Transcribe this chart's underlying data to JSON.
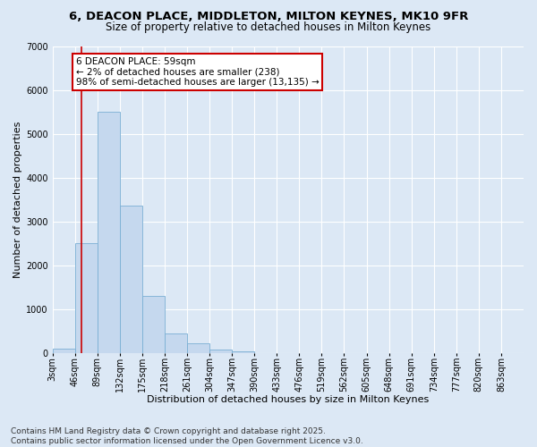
{
  "title_line1": "6, DEACON PLACE, MIDDLETON, MILTON KEYNES, MK10 9FR",
  "title_line2": "Size of property relative to detached houses in Milton Keynes",
  "xlabel": "Distribution of detached houses by size in Milton Keynes",
  "ylabel": "Number of detached properties",
  "annotation_title": "6 DEACON PLACE: 59sqm",
  "annotation_line2": "← 2% of detached houses are smaller (238)",
  "annotation_line3": "98% of semi-detached houses are larger (13,135) →",
  "footer_line1": "Contains HM Land Registry data © Crown copyright and database right 2025.",
  "footer_line2": "Contains public sector information licensed under the Open Government Licence v3.0.",
  "bin_labels": [
    "3sqm",
    "46sqm",
    "89sqm",
    "132sqm",
    "175sqm",
    "218sqm",
    "261sqm",
    "304sqm",
    "347sqm",
    "390sqm",
    "433sqm",
    "476sqm",
    "519sqm",
    "562sqm",
    "605sqm",
    "648sqm",
    "691sqm",
    "734sqm",
    "777sqm",
    "820sqm",
    "863sqm"
  ],
  "bin_edges": [
    3,
    46,
    89,
    132,
    175,
    218,
    261,
    304,
    347,
    390,
    433,
    476,
    519,
    562,
    605,
    648,
    691,
    734,
    777,
    820,
    863
  ],
  "bar_heights": [
    100,
    2500,
    5500,
    3350,
    1300,
    450,
    220,
    80,
    30,
    0,
    0,
    0,
    0,
    0,
    0,
    0,
    0,
    0,
    0,
    0
  ],
  "bar_color": "#c5d8ee",
  "bar_edge_color": "#7aafd4",
  "vline_x": 59,
  "vline_color": "#cc0000",
  "annotation_box_color": "#cc0000",
  "ylim": [
    0,
    7000
  ],
  "yticks": [
    0,
    1000,
    2000,
    3000,
    4000,
    5000,
    6000,
    7000
  ],
  "bg_color": "#dce8f5",
  "plot_bg_color": "#dce8f5",
  "grid_color": "#ffffff",
  "title_fontsize": 9.5,
  "subtitle_fontsize": 8.5,
  "axis_label_fontsize": 8,
  "tick_fontsize": 7,
  "annotation_fontsize": 7.5,
  "footer_fontsize": 6.5
}
